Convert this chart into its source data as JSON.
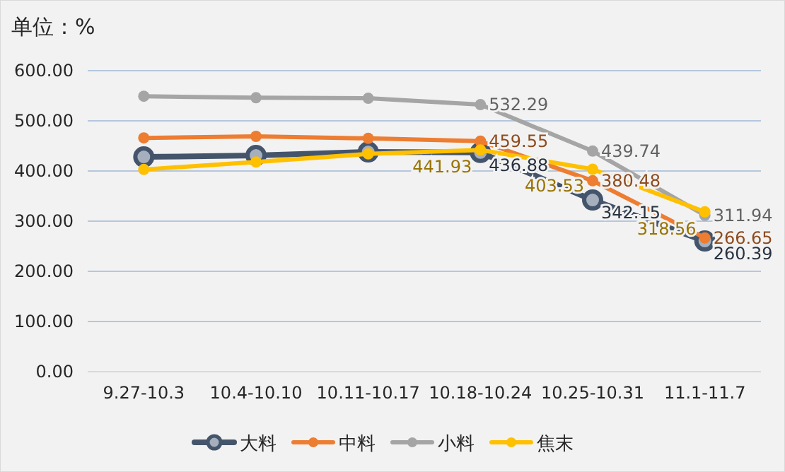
{
  "chart_data": {
    "type": "line",
    "ylabel": "单位：%",
    "categories": [
      "9.27-10.3",
      "10.4-10.10",
      "10.11-10.17",
      "10.18-10.24",
      "10.25-10.31",
      "11.1-11.7"
    ],
    "ylim": [
      0,
      600
    ],
    "yticks": [
      {
        "value": 0,
        "label": "0.00"
      },
      {
        "value": 100,
        "label": "100.00"
      },
      {
        "value": 200,
        "label": "200.00"
      },
      {
        "value": 300,
        "label": "300.00"
      },
      {
        "value": 400,
        "label": "400.00"
      },
      {
        "value": 500,
        "label": "500.00"
      },
      {
        "value": 600,
        "label": "600.00"
      }
    ],
    "grid": "y",
    "legend": "bottom",
    "marker": "circle",
    "line_style": "solid",
    "series": [
      {
        "name": "大料",
        "color": "#44546a",
        "values": [
          428,
          431,
          438,
          436.88,
          342.15,
          260.39
        ],
        "value_labels": [
          null,
          null,
          null,
          "436.88",
          "342.15",
          "260.39"
        ]
      },
      {
        "name": "中料",
        "color": "#ed7d31",
        "values": [
          466,
          469,
          465,
          459.55,
          380.48,
          266.65
        ],
        "value_labels": [
          null,
          null,
          null,
          "459.55",
          "380.48",
          "266.65"
        ]
      },
      {
        "name": "小料",
        "color": "#a5a5a5",
        "values": [
          549,
          546,
          545,
          532.29,
          439.74,
          311.94
        ],
        "value_labels": [
          null,
          null,
          null,
          "532.29",
          "439.74",
          "311.94"
        ]
      },
      {
        "name": "焦末",
        "color": "#ffc000",
        "values": [
          403,
          418,
          434,
          441.93,
          403.53,
          318.56
        ],
        "value_labels": [
          null,
          null,
          null,
          "441.93",
          "403.53",
          "318.56"
        ]
      }
    ]
  }
}
